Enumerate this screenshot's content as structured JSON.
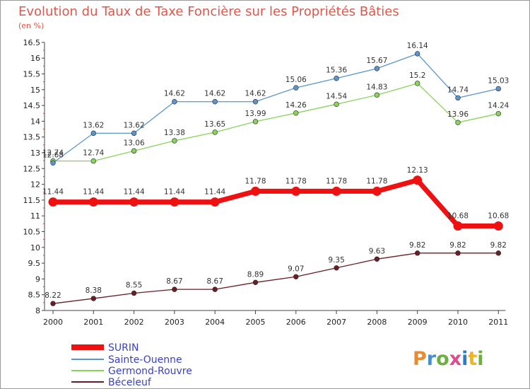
{
  "title": "Evolution du Taux de Taxe Foncière sur les Propriétés Bâties",
  "unit_label": "(en %)",
  "logo": {
    "text": "Proxiti",
    "colors": [
      "#e98b2e",
      "#4a90c8",
      "#6db03f",
      "#e24a8e",
      "#2b7fc0",
      "#f0b51a",
      "#6db03f"
    ]
  },
  "chart_data": {
    "type": "line",
    "title": "Evolution du Taux de Taxe Foncière sur les Propriétés Bâties",
    "ylabel": "(en %)",
    "xlabel": "",
    "ylim": [
      8,
      16.5
    ],
    "y_ticks": [
      "8",
      "8.5",
      "9",
      "9.5",
      "10",
      "10.5",
      "11",
      "11.5",
      "12",
      "12.5",
      "13",
      "13.5",
      "14",
      "14.5",
      "15",
      "15.5",
      "16",
      "16.5"
    ],
    "x": [
      "2000",
      "2001",
      "2002",
      "2003",
      "2004",
      "2005",
      "2006",
      "2007",
      "2008",
      "2009",
      "2010",
      "2011"
    ],
    "grid": false,
    "legend_position": "bottom-left",
    "series": [
      {
        "name": "SURIN",
        "color": "#ee1111",
        "values": [
          11.44,
          11.44,
          11.44,
          11.44,
          11.44,
          11.78,
          11.78,
          11.78,
          11.78,
          12.13,
          10.68,
          10.68
        ],
        "labels": [
          "11.44",
          "11.44",
          "11.44",
          "11.44",
          "11.44",
          "11.78",
          "11.78",
          "11.78",
          "11.78",
          "12.13",
          "10.68",
          "10.68"
        ]
      },
      {
        "name": "Sainte-Ouenne",
        "color": "#5b95cc",
        "values": [
          12.68,
          13.62,
          13.62,
          14.62,
          14.62,
          14.62,
          15.06,
          15.36,
          15.67,
          16.14,
          14.74,
          15.03
        ],
        "labels": [
          "12.68",
          "13.62",
          "13.62",
          "14.62",
          "14.62",
          "14.62",
          "15.06",
          "15.36",
          "15.67",
          "16.14",
          "14.74",
          "15.03"
        ]
      },
      {
        "name": "Germond-Rouvre",
        "color": "#88d45b",
        "values": [
          12.74,
          12.74,
          13.06,
          13.38,
          13.65,
          13.99,
          14.26,
          14.54,
          14.83,
          15.2,
          13.96,
          14.24
        ],
        "labels": [
          "12.74",
          "12.74",
          "13.06",
          "13.38",
          "13.65",
          "13.99",
          "14.26",
          "14.54",
          "14.83",
          "15.2",
          "13.96",
          "14.24"
        ]
      },
      {
        "name": "Béceleuf",
        "color": "#6b1d24",
        "values": [
          8.22,
          8.38,
          8.55,
          8.67,
          8.67,
          8.89,
          9.07,
          9.35,
          9.63,
          9.82,
          9.82,
          9.82
        ],
        "labels": [
          "8.22",
          "8.38",
          "8.55",
          "8.67",
          "8.67",
          "8.89",
          "9.07",
          "9.35",
          "9.63",
          "9.82",
          "9.82",
          "9.82"
        ]
      }
    ]
  }
}
